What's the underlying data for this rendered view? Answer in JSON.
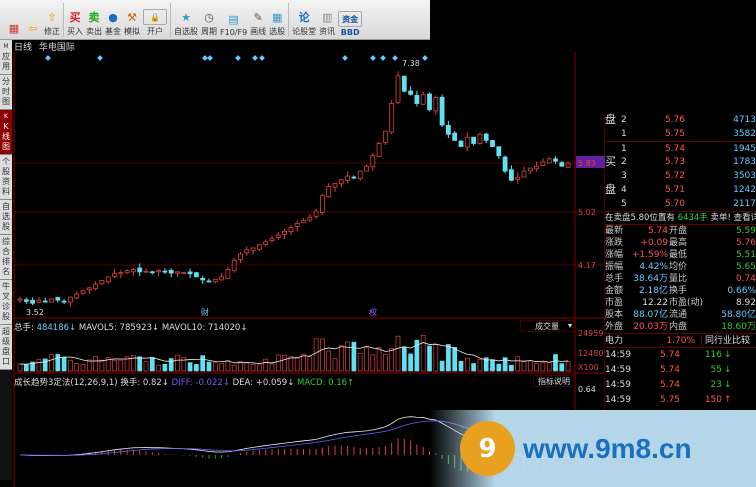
{
  "toolbar": {
    "items": [
      {
        "label": "",
        "icon": "home-grid-icon",
        "color": "#c33"
      },
      {
        "label": "",
        "icon": "back-arrow-icon",
        "color": "#f0b020"
      },
      {
        "label": "修正",
        "icon": "up-down-arrows-icon",
        "color": "#f0b020"
      },
      {
        "label": "买入",
        "icon": "buy-icon",
        "glyph": "买",
        "color": "#d22"
      },
      {
        "label": "卖出",
        "icon": "sell-icon",
        "glyph": "卖",
        "color": "#2a2"
      },
      {
        "label": "基金",
        "icon": "fund-icon",
        "glyph": "●",
        "color": "#1a6fc0"
      },
      {
        "label": "模拟",
        "icon": "hammer-icon",
        "glyph": "⚒",
        "color": "#c60"
      },
      {
        "label": "开户",
        "icon": "lock-icon",
        "glyph": "🔒",
        "color": "#b80"
      },
      {
        "label": "自选股",
        "icon": "star-folder-icon",
        "glyph": "★",
        "color": "#39c"
      },
      {
        "label": "周期",
        "icon": "clock-icon",
        "glyph": "◷",
        "color": "#555"
      },
      {
        "label": "F10/F9",
        "icon": "f10-icon",
        "glyph": "▤",
        "color": "#39c"
      },
      {
        "label": "画线",
        "icon": "pencil-icon",
        "glyph": "✎",
        "color": "#555"
      },
      {
        "label": "选股",
        "icon": "screen-stock-icon",
        "glyph": "▦",
        "color": "#39c"
      },
      {
        "label": "论股堂",
        "icon": "forum-icon",
        "glyph": "论",
        "color": "#1a6fc0"
      },
      {
        "label": "资讯",
        "icon": "news-icon",
        "glyph": "▥",
        "color": "#888"
      },
      {
        "label": "BBD",
        "icon": "funds-dropdown-icon",
        "glyph": "资金",
        "color": "#1a4fa0"
      }
    ]
  },
  "sidebar": {
    "tabs": [
      {
        "label": "应用",
        "prefix": "M"
      },
      {
        "label": "分时图"
      },
      {
        "label": "K线图",
        "prefix": "K",
        "active": true
      },
      {
        "label": "个股资料"
      },
      {
        "label": "自选股"
      },
      {
        "label": "综合排名"
      },
      {
        "label": "牛叉诊股"
      },
      {
        "label": "超级盘口"
      }
    ]
  },
  "chart_title": {
    "period": "日线",
    "stock": "华电国际"
  },
  "colors": {
    "up": "#e04040",
    "down": "#60e0f0",
    "grid": "#5a0000",
    "ma_white": "#eeeeee",
    "ma_yellow": "#e0d060",
    "ma_purple": "#6060ff"
  },
  "chart_data": {
    "type": "candlestick",
    "price_axis": {
      "labels": [
        "5.83",
        "5.02",
        "4.17"
      ],
      "range": [
        3.31,
        7.59
      ]
    },
    "high_label": "7.38",
    "low_label": "3.52",
    "event_markers": [
      "财",
      "权"
    ],
    "closes": [
      3.62,
      3.58,
      3.55,
      3.6,
      3.57,
      3.62,
      3.6,
      3.58,
      3.65,
      3.7,
      3.75,
      3.8,
      3.86,
      3.92,
      3.98,
      4.03,
      4.05,
      4.08,
      4.1,
      4.06,
      4.07,
      4.05,
      4.08,
      4.06,
      4.04,
      4.06,
      4.05,
      4.03,
      3.98,
      3.93,
      3.9,
      3.94,
      3.98,
      4.1,
      4.25,
      4.35,
      4.42,
      4.45,
      4.5,
      4.55,
      4.6,
      4.66,
      4.72,
      4.78,
      4.85,
      4.9,
      4.95,
      5.05,
      5.3,
      5.45,
      5.5,
      5.56,
      5.62,
      5.6,
      5.7,
      5.78,
      5.95,
      6.15,
      6.35,
      6.8,
      7.25,
      7.0,
      6.95,
      6.8,
      6.95,
      6.7,
      6.9,
      6.45,
      6.3,
      6.2,
      6.1,
      6.25,
      6.15,
      6.3,
      6.2,
      6.1,
      5.95,
      5.7,
      5.55,
      5.6,
      5.7,
      5.75,
      5.78,
      5.85,
      5.9,
      5.86,
      5.78,
      5.83
    ],
    "volume": {
      "header": {
        "total_label": "总手: ",
        "total": "484186↓",
        "mavol5_label": "MAVOL5: ",
        "mavol5": "785923↓",
        "mavol10_label": "MAVOL10: ",
        "mavol10": "714020↓"
      },
      "indicator_select": "成交量",
      "axis_labels": [
        "24959",
        "12480",
        "X100"
      ]
    },
    "macd": {
      "header": {
        "name": "成长趋势3定法(12,26,9,1)",
        "turnover": "换手: 0.82↓",
        "diff": "DIFF: -0.022↓",
        "dea": "DEA: +0.059↓",
        "macd": "MACD: 0.16↑"
      },
      "help_button": "指标说明",
      "axis_labels": [
        "0.64"
      ]
    }
  },
  "order_book": {
    "rows": [
      {
        "side": "盘",
        "n": "2",
        "price": "5.76",
        "vol": "4713"
      },
      {
        "side": "",
        "n": "1",
        "price": "5.75",
        "vol": "3582"
      },
      {
        "side": "",
        "n": "1",
        "price": "5.74",
        "vol": "1945"
      },
      {
        "side": "买",
        "n": "2",
        "price": "5.73",
        "vol": "1783"
      },
      {
        "side": "",
        "n": "3",
        "price": "5.72",
        "vol": "3503"
      },
      {
        "side": "盘",
        "n": "4",
        "price": "5.71",
        "vol": "1242"
      },
      {
        "side": "",
        "n": "5",
        "price": "5.70",
        "vol": "2117"
      }
    ],
    "notice": {
      "text": "在卖盘5.80位置有",
      "qty": "6434手",
      "tail": "卖单! 查看详细"
    }
  },
  "quote": [
    {
      "l": "最新",
      "v": "5.74",
      "vc": "r",
      "l2": "开盘",
      "v2": "5.59",
      "v2c": "g"
    },
    {
      "l": "涨跌",
      "v": "+0.09",
      "vc": "r",
      "l2": "最高",
      "v2": "5.76",
      "v2c": "r"
    },
    {
      "l": "涨幅",
      "v": "+1.59%",
      "vc": "r",
      "l2": "最低",
      "v2": "5.51",
      "v2c": "g"
    },
    {
      "l": "振幅",
      "v": "4.42%",
      "vc": "c",
      "l2": "均价",
      "v2": "5.65",
      "v2c": "g"
    },
    {
      "l": "总手",
      "v": "38.64万",
      "vc": "c",
      "l2": "量比",
      "v2": "0.74",
      "v2c": "r"
    },
    {
      "l": "金额",
      "v": "2.18亿",
      "vc": "c",
      "l2": "换手",
      "v2": "0.66%",
      "v2c": "c"
    },
    {
      "l": "市盈",
      "v": "12.22",
      "vc": "w",
      "l2": "市盈(动)",
      "v2": "8.92",
      "v2c": "w"
    },
    {
      "l": "股本",
      "v": "88.07亿",
      "vc": "c",
      "l2": "流通",
      "v2": "58.80亿",
      "v2c": "c"
    },
    {
      "l": "外盘",
      "v": "20.03万",
      "vc": "r",
      "l2": "内盘",
      "v2": "18.60万",
      "v2c": "g"
    }
  ],
  "industry": {
    "name": "电力",
    "pct": "1.70%",
    "compare": "同行业比较"
  },
  "ticks": [
    {
      "t": "14:59",
      "p": "5.74",
      "v": "116",
      "dir": "↓",
      "c": "g"
    },
    {
      "t": "14:59",
      "p": "5.74",
      "v": "55",
      "dir": "↓",
      "c": "g"
    },
    {
      "t": "14:59",
      "p": "5.74",
      "v": "23",
      "dir": "↓",
      "c": "g"
    },
    {
      "t": "14:59",
      "p": "5.75",
      "v": "150",
      "dir": "↑",
      "c": "r"
    }
  ],
  "watermark": {
    "logo": "9",
    "text": "www.9m8.cn"
  }
}
